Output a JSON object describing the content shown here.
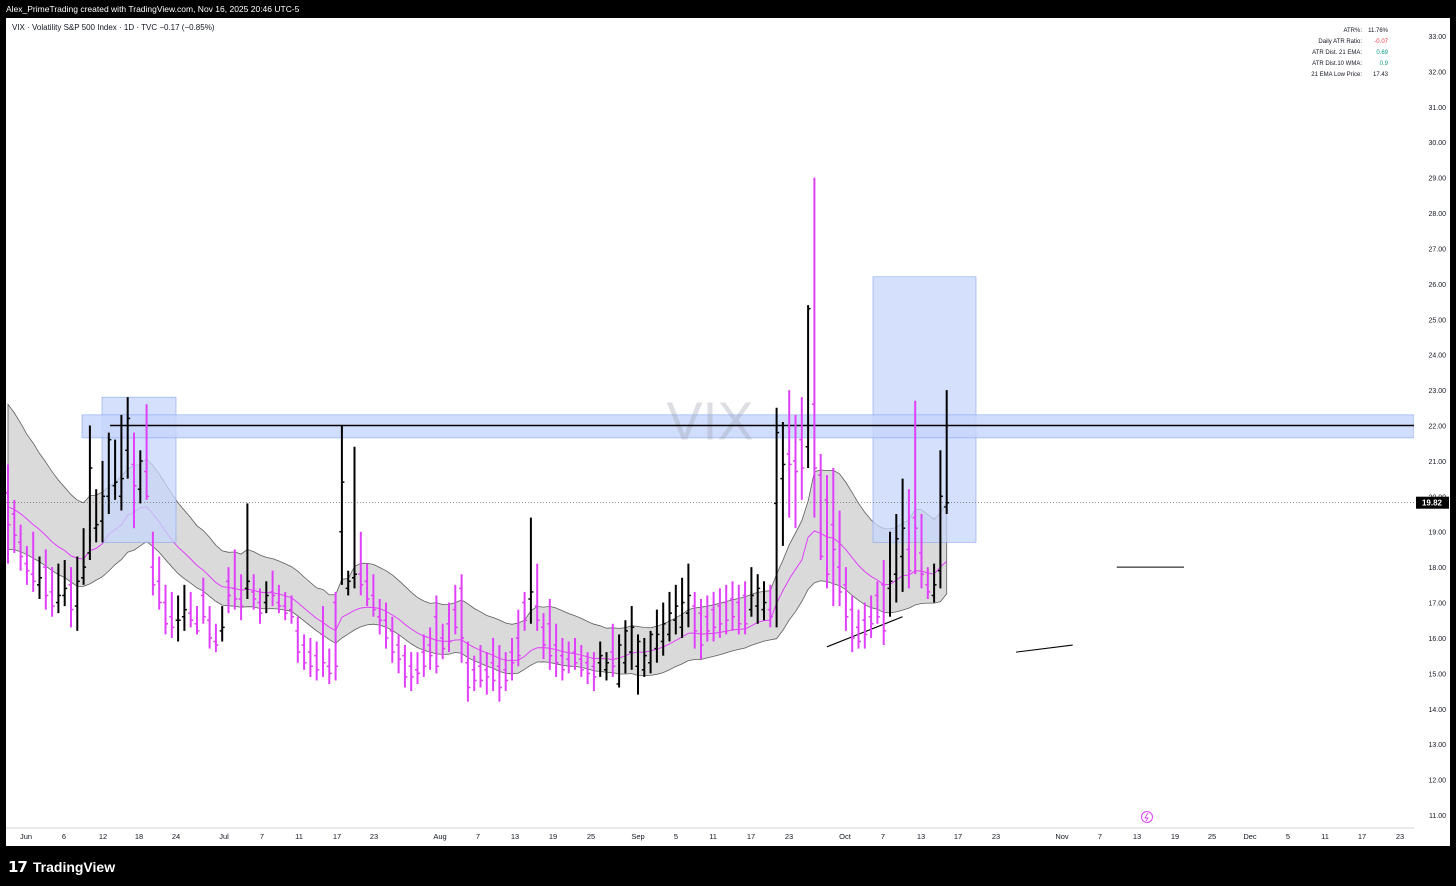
{
  "header": {
    "credit": "Alex_PrimeTrading created with TradingView.com, Nov 16, 2025 20:46 UTC-5"
  },
  "symbol": {
    "line": "VIX · Volatility S&P 500 Index · 1D · TVC  −0.17 (−0.85%)",
    "watermark": "VIX"
  },
  "stats": [
    {
      "label": "ATR%:",
      "value": "11.76%",
      "color": "#131722"
    },
    {
      "label": "Daily ATR Ratio:",
      "value": "-0.07",
      "color": "#f23645"
    },
    {
      "label": "ATR Dist. 21 EMA:",
      "value": "0.69",
      "color": "#089981"
    },
    {
      "label": "ATR Dist.10 WMA:",
      "value": "0.9",
      "color": "#089981"
    },
    {
      "label": "21 EMA Low Price:",
      "value": "17.43",
      "color": "#131722"
    }
  ],
  "price_label": "19.82",
  "footer": {
    "brand": "TradingView"
  },
  "colors": {
    "up_bar": "#000000",
    "down_bar": "#e040fb",
    "ema": "#e040fb",
    "band_fill": "#d9d9d9",
    "zone": "#c5d5fb",
    "zone_border": "#89a6f2",
    "price_tag": "#000000"
  },
  "chart_data": {
    "type": "ohlc",
    "interval": "1D",
    "ylim": [
      10.5,
      33.5
    ],
    "y_ticks": [
      "11.00",
      "12.00",
      "13.00",
      "14.00",
      "15.00",
      "16.00",
      "17.00",
      "18.00",
      "19.00",
      "20.00",
      "21.00",
      "22.00",
      "23.00",
      "24.00",
      "25.00",
      "26.00",
      "27.00",
      "28.00",
      "29.00",
      "30.00",
      "31.00",
      "32.00",
      "33.00"
    ],
    "x_ticks": [
      "Jun",
      "6",
      "12",
      "18",
      "24",
      "Jul",
      "7",
      "11",
      "17",
      "23",
      "Aug",
      "7",
      "13",
      "19",
      "25",
      "Sep",
      "5",
      "11",
      "17",
      "23",
      "Oct",
      "7",
      "13",
      "17",
      "23",
      "Nov",
      "7",
      "13",
      "19",
      "25",
      "Dec",
      "5",
      "11",
      "17",
      "23"
    ],
    "last_price": 19.82,
    "resistance_level": 22.0,
    "bars": [
      {
        "o": 20.1,
        "h": 20.9,
        "l": 18.1,
        "c": 19.2
      },
      {
        "o": 19.5,
        "h": 19.9,
        "l": 18.4,
        "c": 18.9
      },
      {
        "o": 18.7,
        "h": 19.2,
        "l": 17.9,
        "c": 18.3
      },
      {
        "o": 18.1,
        "h": 18.6,
        "l": 17.5,
        "c": 17.9
      },
      {
        "o": 17.8,
        "h": 19.0,
        "l": 17.3,
        "c": 17.6
      },
      {
        "o": 17.5,
        "h": 18.3,
        "l": 17.1,
        "c": 17.7
      },
      {
        "o": 18.0,
        "h": 18.5,
        "l": 16.8,
        "c": 17.2
      },
      {
        "o": 17.3,
        "h": 18.0,
        "l": 16.6,
        "c": 16.9
      },
      {
        "o": 17.0,
        "h": 18.1,
        "l": 16.7,
        "c": 17.2
      },
      {
        "o": 17.2,
        "h": 18.2,
        "l": 16.9,
        "c": 17.4
      },
      {
        "o": 17.5,
        "h": 18.0,
        "l": 16.3,
        "c": 16.8
      },
      {
        "o": 16.9,
        "h": 18.3,
        "l": 16.2,
        "c": 17.6
      },
      {
        "o": 17.7,
        "h": 19.1,
        "l": 17.5,
        "c": 18.0
      },
      {
        "o": 18.4,
        "h": 22.0,
        "l": 18.2,
        "c": 20.8
      },
      {
        "o": 19.1,
        "h": 20.2,
        "l": 18.7,
        "c": 19.2
      },
      {
        "o": 19.3,
        "h": 21.0,
        "l": 18.7,
        "c": 20.0
      },
      {
        "o": 20.0,
        "h": 21.8,
        "l": 19.5,
        "c": 21.6
      },
      {
        "o": 20.3,
        "h": 21.6,
        "l": 19.9,
        "c": 20.4
      },
      {
        "o": 20.0,
        "h": 22.3,
        "l": 19.6,
        "c": 20.5
      },
      {
        "o": 21.3,
        "h": 22.8,
        "l": 20.5,
        "c": 22.2
      },
      {
        "o": 20.9,
        "h": 21.8,
        "l": 19.1,
        "c": 20.3
      },
      {
        "o": 20.2,
        "h": 21.3,
        "l": 19.8,
        "c": 21.0
      },
      {
        "o": 20.7,
        "h": 22.6,
        "l": 19.9,
        "c": 20.0
      },
      {
        "o": 18.0,
        "h": 19.0,
        "l": 17.2,
        "c": 17.5
      },
      {
        "o": 17.6,
        "h": 18.3,
        "l": 16.8,
        "c": 17.0
      },
      {
        "o": 17.0,
        "h": 17.5,
        "l": 16.1,
        "c": 16.4
      },
      {
        "o": 16.6,
        "h": 17.3,
        "l": 16.0,
        "c": 16.3
      },
      {
        "o": 16.5,
        "h": 17.2,
        "l": 15.9,
        "c": 16.5
      },
      {
        "o": 16.6,
        "h": 17.5,
        "l": 16.2,
        "c": 16.8
      },
      {
        "o": 16.7,
        "h": 17.3,
        "l": 16.3,
        "c": 16.5
      },
      {
        "o": 16.4,
        "h": 16.9,
        "l": 16.1,
        "c": 16.2
      },
      {
        "o": 17.2,
        "h": 17.7,
        "l": 16.4,
        "c": 16.6
      },
      {
        "o": 16.5,
        "h": 16.9,
        "l": 15.7,
        "c": 16.0
      },
      {
        "o": 15.9,
        "h": 16.4,
        "l": 15.6,
        "c": 15.8
      },
      {
        "o": 16.2,
        "h": 16.9,
        "l": 15.9,
        "c": 16.3
      },
      {
        "o": 17.6,
        "h": 18.0,
        "l": 16.7,
        "c": 17.2
      },
      {
        "o": 17.4,
        "h": 18.5,
        "l": 16.8,
        "c": 17.1
      },
      {
        "o": 17.1,
        "h": 17.8,
        "l": 16.5,
        "c": 16.9
      },
      {
        "o": 17.4,
        "h": 19.8,
        "l": 17.1,
        "c": 17.6
      },
      {
        "o": 17.3,
        "h": 17.8,
        "l": 16.8,
        "c": 17.1
      },
      {
        "o": 17.0,
        "h": 17.4,
        "l": 16.4,
        "c": 16.7
      },
      {
        "o": 17.0,
        "h": 17.6,
        "l": 16.7,
        "c": 17.2
      },
      {
        "o": 17.3,
        "h": 17.9,
        "l": 16.9,
        "c": 17.2
      },
      {
        "o": 17.0,
        "h": 17.5,
        "l": 16.7,
        "c": 16.9
      },
      {
        "o": 16.9,
        "h": 17.3,
        "l": 16.5,
        "c": 16.7
      },
      {
        "o": 16.8,
        "h": 17.2,
        "l": 16.4,
        "c": 16.6
      },
      {
        "o": 16.2,
        "h": 16.6,
        "l": 15.3,
        "c": 15.6
      },
      {
        "o": 15.8,
        "h": 16.1,
        "l": 15.1,
        "c": 15.3
      },
      {
        "o": 15.6,
        "h": 16.0,
        "l": 14.9,
        "c": 15.2
      },
      {
        "o": 15.5,
        "h": 15.9,
        "l": 14.8,
        "c": 15.1
      },
      {
        "o": 16.1,
        "h": 16.9,
        "l": 14.9,
        "c": 15.3
      },
      {
        "o": 15.2,
        "h": 15.7,
        "l": 14.7,
        "c": 15.0
      },
      {
        "o": 17.0,
        "h": 17.3,
        "l": 14.8,
        "c": 15.2
      },
      {
        "o": 19.0,
        "h": 22.0,
        "l": 17.5,
        "c": 20.4
      },
      {
        "o": 17.4,
        "h": 17.9,
        "l": 17.2,
        "c": 17.6
      },
      {
        "o": 17.7,
        "h": 21.4,
        "l": 17.4,
        "c": 17.8
      },
      {
        "o": 17.8,
        "h": 19.0,
        "l": 17.2,
        "c": 17.5
      },
      {
        "o": 17.6,
        "h": 18.1,
        "l": 16.9,
        "c": 17.1
      },
      {
        "o": 17.2,
        "h": 17.8,
        "l": 16.6,
        "c": 16.8
      },
      {
        "o": 16.6,
        "h": 17.1,
        "l": 16.1,
        "c": 16.5
      },
      {
        "o": 16.5,
        "h": 17.0,
        "l": 15.7,
        "c": 16.0
      },
      {
        "o": 16.2,
        "h": 16.6,
        "l": 15.3,
        "c": 15.6
      },
      {
        "o": 15.8,
        "h": 16.1,
        "l": 15.0,
        "c": 15.4
      },
      {
        "o": 15.5,
        "h": 15.8,
        "l": 14.6,
        "c": 14.9
      },
      {
        "o": 15.2,
        "h": 15.6,
        "l": 14.5,
        "c": 14.9
      },
      {
        "o": 15.1,
        "h": 15.6,
        "l": 14.7,
        "c": 15.0
      },
      {
        "o": 15.6,
        "h": 16.1,
        "l": 14.9,
        "c": 15.2
      },
      {
        "o": 15.8,
        "h": 16.3,
        "l": 15.1,
        "c": 15.5
      },
      {
        "o": 16.6,
        "h": 17.2,
        "l": 15.0,
        "c": 15.2
      },
      {
        "o": 16.0,
        "h": 16.4,
        "l": 15.4,
        "c": 15.7
      },
      {
        "o": 16.4,
        "h": 17.0,
        "l": 15.6,
        "c": 15.9
      },
      {
        "o": 16.8,
        "h": 17.5,
        "l": 16.1,
        "c": 16.3
      },
      {
        "o": 17.4,
        "h": 17.8,
        "l": 15.3,
        "c": 16.0
      },
      {
        "o": 15.3,
        "h": 15.9,
        "l": 14.2,
        "c": 14.6
      },
      {
        "o": 15.1,
        "h": 15.5,
        "l": 14.5,
        "c": 14.8
      },
      {
        "o": 15.2,
        "h": 15.8,
        "l": 14.6,
        "c": 14.8
      },
      {
        "o": 15.1,
        "h": 15.6,
        "l": 14.4,
        "c": 14.9
      },
      {
        "o": 15.3,
        "h": 16.0,
        "l": 14.5,
        "c": 14.8
      },
      {
        "o": 15.2,
        "h": 15.8,
        "l": 14.2,
        "c": 14.6
      },
      {
        "o": 15.1,
        "h": 15.6,
        "l": 14.5,
        "c": 14.8
      },
      {
        "o": 15.6,
        "h": 16.0,
        "l": 14.8,
        "c": 15.3
      },
      {
        "o": 16.0,
        "h": 16.8,
        "l": 15.2,
        "c": 15.5
      },
      {
        "o": 17.0,
        "h": 17.3,
        "l": 16.2,
        "c": 16.5
      },
      {
        "o": 17.1,
        "h": 19.4,
        "l": 16.4,
        "c": 17.3
      },
      {
        "o": 16.9,
        "h": 18.1,
        "l": 16.2,
        "c": 16.5
      },
      {
        "o": 16.3,
        "h": 16.7,
        "l": 15.4,
        "c": 15.8
      },
      {
        "o": 16.4,
        "h": 17.1,
        "l": 15.1,
        "c": 15.5
      },
      {
        "o": 15.8,
        "h": 16.4,
        "l": 14.9,
        "c": 15.3
      },
      {
        "o": 15.5,
        "h": 16.0,
        "l": 14.8,
        "c": 15.1
      },
      {
        "o": 15.4,
        "h": 15.9,
        "l": 15.0,
        "c": 15.2
      },
      {
        "o": 15.6,
        "h": 16.0,
        "l": 15.1,
        "c": 15.3
      },
      {
        "o": 15.4,
        "h": 15.8,
        "l": 14.9,
        "c": 15.1
      },
      {
        "o": 15.3,
        "h": 15.6,
        "l": 14.7,
        "c": 15.0
      },
      {
        "o": 15.2,
        "h": 15.6,
        "l": 14.5,
        "c": 14.9
      },
      {
        "o": 15.3,
        "h": 15.9,
        "l": 14.9,
        "c": 15.5
      },
      {
        "o": 15.1,
        "h": 15.6,
        "l": 14.8,
        "c": 15.3
      },
      {
        "o": 15.6,
        "h": 16.4,
        "l": 14.9,
        "c": 15.2
      },
      {
        "o": 14.7,
        "h": 16.1,
        "l": 14.6,
        "c": 15.8
      },
      {
        "o": 15.3,
        "h": 16.5,
        "l": 15.0,
        "c": 16.2
      },
      {
        "o": 15.6,
        "h": 16.9,
        "l": 15.1,
        "c": 16.3
      },
      {
        "o": 15.2,
        "h": 16.1,
        "l": 14.4,
        "c": 15.9
      },
      {
        "o": 15.1,
        "h": 16.0,
        "l": 14.9,
        "c": 15.5
      },
      {
        "o": 15.3,
        "h": 16.2,
        "l": 15.0,
        "c": 16.1
      },
      {
        "o": 15.7,
        "h": 16.8,
        "l": 15.3,
        "c": 16.1
      },
      {
        "o": 15.9,
        "h": 17.0,
        "l": 15.5,
        "c": 16.4
      },
      {
        "o": 16.1,
        "h": 17.3,
        "l": 15.9,
        "c": 16.7
      },
      {
        "o": 16.5,
        "h": 17.5,
        "l": 16.1,
        "c": 16.9
      },
      {
        "o": 16.3,
        "h": 17.7,
        "l": 16.0,
        "c": 17.0
      },
      {
        "o": 16.7,
        "h": 18.1,
        "l": 16.3,
        "c": 17.2
      },
      {
        "o": 16.9,
        "h": 17.3,
        "l": 15.7,
        "c": 16.2
      },
      {
        "o": 16.7,
        "h": 17.1,
        "l": 15.4,
        "c": 15.8
      },
      {
        "o": 16.6,
        "h": 17.2,
        "l": 15.9,
        "c": 16.2
      },
      {
        "o": 16.8,
        "h": 17.3,
        "l": 15.9,
        "c": 16.3
      },
      {
        "o": 16.9,
        "h": 17.4,
        "l": 16.0,
        "c": 16.4
      },
      {
        "o": 17.0,
        "h": 17.5,
        "l": 16.1,
        "c": 16.5
      },
      {
        "o": 17.1,
        "h": 17.6,
        "l": 16.2,
        "c": 16.6
      },
      {
        "o": 17.0,
        "h": 17.5,
        "l": 16.1,
        "c": 16.4
      },
      {
        "o": 17.2,
        "h": 17.6,
        "l": 16.1,
        "c": 16.4
      },
      {
        "o": 16.8,
        "h": 18.0,
        "l": 16.6,
        "c": 17.2
      },
      {
        "o": 16.9,
        "h": 17.8,
        "l": 16.4,
        "c": 17.4
      },
      {
        "o": 16.8,
        "h": 17.6,
        "l": 16.5,
        "c": 17.0
      },
      {
        "o": 16.8,
        "h": 17.5,
        "l": 16.3,
        "c": 16.6
      },
      {
        "o": 19.8,
        "h": 22.5,
        "l": 16.3,
        "c": 21.8
      },
      {
        "o": 20.5,
        "h": 22.1,
        "l": 18.6,
        "c": 20.9
      },
      {
        "o": 21.2,
        "h": 23.0,
        "l": 19.4,
        "c": 20.9
      },
      {
        "o": 21.0,
        "h": 22.3,
        "l": 19.1,
        "c": 20.7
      },
      {
        "o": 21.6,
        "h": 22.8,
        "l": 19.9,
        "c": 20.8
      },
      {
        "o": 21.4,
        "h": 25.4,
        "l": 20.8,
        "c": 25.3
      },
      {
        "o": 22.6,
        "h": 29.0,
        "l": 19.4,
        "c": 20.8
      },
      {
        "o": 20.6,
        "h": 21.2,
        "l": 18.2,
        "c": 18.3
      },
      {
        "o": 19.9,
        "h": 20.6,
        "l": 17.4,
        "c": 17.8
      },
      {
        "o": 19.2,
        "h": 20.8,
        "l": 16.9,
        "c": 18.5
      },
      {
        "o": 18.0,
        "h": 19.6,
        "l": 16.9,
        "c": 17.3
      },
      {
        "o": 17.5,
        "h": 18.0,
        "l": 16.2,
        "c": 16.6
      },
      {
        "o": 16.8,
        "h": 17.2,
        "l": 15.6,
        "c": 16.0
      },
      {
        "o": 16.3,
        "h": 16.8,
        "l": 15.7,
        "c": 15.9
      },
      {
        "o": 16.5,
        "h": 17.0,
        "l": 15.7,
        "c": 16.1
      },
      {
        "o": 16.6,
        "h": 17.2,
        "l": 16.0,
        "c": 16.4
      },
      {
        "o": 17.2,
        "h": 17.6,
        "l": 16.4,
        "c": 16.6
      },
      {
        "o": 17.5,
        "h": 18.2,
        "l": 15.8,
        "c": 16.2
      },
      {
        "o": 17.4,
        "h": 19.0,
        "l": 16.6,
        "c": 17.6
      },
      {
        "o": 17.8,
        "h": 19.5,
        "l": 17.0,
        "c": 18.8
      },
      {
        "o": 18.3,
        "h": 20.5,
        "l": 17.3,
        "c": 19.1
      },
      {
        "o": 18.5,
        "h": 20.2,
        "l": 17.4,
        "c": 17.9
      },
      {
        "o": 19.4,
        "h": 22.7,
        "l": 17.8,
        "c": 19.1
      },
      {
        "o": 18.4,
        "h": 19.5,
        "l": 17.4,
        "c": 17.8
      },
      {
        "o": 17.5,
        "h": 18.0,
        "l": 17.1,
        "c": 17.3
      },
      {
        "o": 17.2,
        "h": 18.1,
        "l": 17.0,
        "c": 17.5
      },
      {
        "o": 17.9,
        "h": 21.3,
        "l": 17.4,
        "c": 20.0
      },
      {
        "o": 19.7,
        "h": 23.0,
        "l": 19.5,
        "c": 19.82
      }
    ]
  }
}
